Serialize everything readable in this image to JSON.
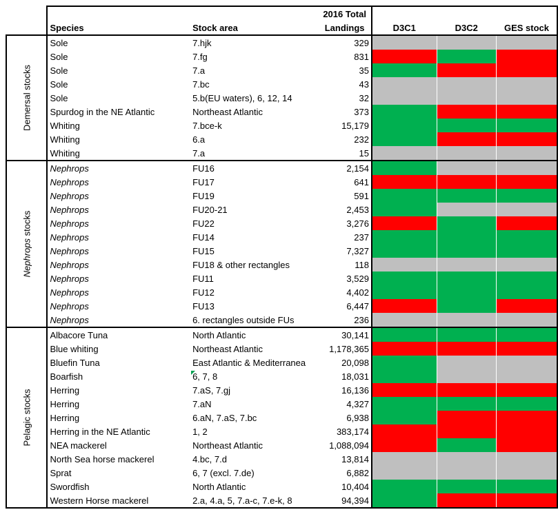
{
  "header": {
    "landings_line1": "2016 Total",
    "landings_line2": "Landings",
    "species": "Species",
    "stock_area": "Stock area",
    "d3c1": "D3C1",
    "d3c2": "D3C2",
    "ges": "GES stock"
  },
  "colors": {
    "red": "#ff0000",
    "green": "#00b050",
    "grey": "#bfbfbf"
  },
  "groups": [
    {
      "label": "Demersal stocks",
      "rows": [
        {
          "species": "Sole",
          "area": "7.hjk",
          "landings": "329",
          "d3c1": "grey",
          "d3c2": "grey",
          "ges": "grey"
        },
        {
          "species": "Sole",
          "area": "7.fg",
          "landings": "831",
          "d3c1": "red",
          "d3c2": "green",
          "ges": "red"
        },
        {
          "species": "Sole",
          "area": "7.a",
          "landings": "35",
          "d3c1": "green",
          "d3c2": "red",
          "ges": "red"
        },
        {
          "species": "Sole",
          "area": "7.bc",
          "landings": "43",
          "d3c1": "grey",
          "d3c2": "grey",
          "ges": "grey"
        },
        {
          "species": "Sole",
          "area": "5.b(EU waters), 6, 12, 14",
          "landings": "32",
          "d3c1": "grey",
          "d3c2": "grey",
          "ges": "grey"
        },
        {
          "species": "Spurdog in the NE Atlantic",
          "area": "Northeast Atlantic",
          "landings": "373",
          "d3c1": "green",
          "d3c2": "red",
          "ges": "red"
        },
        {
          "species": "Whiting",
          "area": "7.bce-k",
          "landings": "15,179",
          "d3c1": "green",
          "d3c2": "green",
          "ges": "green"
        },
        {
          "species": "Whiting",
          "area": "6.a",
          "landings": "232",
          "d3c1": "green",
          "d3c2": "red",
          "ges": "red"
        },
        {
          "species": "Whiting",
          "area": "7.a",
          "landings": "15",
          "d3c1": "grey",
          "d3c2": "grey",
          "ges": "grey"
        }
      ]
    },
    {
      "label_italic": "Nephrops",
      "label_rest": " stocks",
      "rows": [
        {
          "species": "Nephrops",
          "italic": true,
          "area": "FU16",
          "landings": "2,154",
          "d3c1": "green",
          "d3c2": "grey",
          "ges": "grey"
        },
        {
          "species": "Nephrops",
          "italic": true,
          "area": "FU17",
          "landings": "641",
          "d3c1": "red",
          "d3c2": "red",
          "ges": "red"
        },
        {
          "species": "Nephrops",
          "italic": true,
          "area": "FU19",
          "landings": "591",
          "d3c1": "green",
          "d3c2": "green",
          "ges": "green"
        },
        {
          "species": "Nephrops",
          "italic": true,
          "area": "FU20-21",
          "landings": "2,453",
          "d3c1": "green",
          "d3c2": "grey",
          "ges": "grey"
        },
        {
          "species": "Nephrops",
          "italic": true,
          "area": "FU22",
          "landings": "3,276",
          "d3c1": "red",
          "d3c2": "green",
          "ges": "red"
        },
        {
          "species": "Nephrops",
          "italic": true,
          "area": "FU14",
          "landings": "237",
          "d3c1": "green",
          "d3c2": "green",
          "ges": "green"
        },
        {
          "species": "Nephrops",
          "italic": true,
          "area": "FU15",
          "landings": "7,327",
          "d3c1": "green",
          "d3c2": "green",
          "ges": "green"
        },
        {
          "species": "Nephrops",
          "italic": true,
          "area": "FU18 & other rectangles",
          "landings": "118",
          "d3c1": "grey",
          "d3c2": "grey",
          "ges": "grey"
        },
        {
          "species": "Nephrops",
          "italic": true,
          "area": "FU11",
          "landings": "3,529",
          "d3c1": "green",
          "d3c2": "green",
          "ges": "green"
        },
        {
          "species": "Nephrops",
          "italic": true,
          "area": "FU12",
          "landings": "4,402",
          "d3c1": "green",
          "d3c2": "green",
          "ges": "green"
        },
        {
          "species": "Nephrops",
          "italic": true,
          "area": "FU13",
          "landings": "6,447",
          "d3c1": "red",
          "d3c2": "green",
          "ges": "red"
        },
        {
          "species": "Nephrops",
          "italic": true,
          "area": "6. rectangles outside FUs",
          "landings": "236",
          "d3c1": "grey",
          "d3c2": "grey",
          "ges": "grey"
        }
      ]
    },
    {
      "label": "Pelagic stocks",
      "rows": [
        {
          "species": "Albacore Tuna",
          "area": "North Atlantic",
          "landings": "30,141",
          "d3c1": "green",
          "d3c2": "green",
          "ges": "green"
        },
        {
          "species": "Blue whiting",
          "area": "Northeast Atlantic",
          "landings": "1,178,365",
          "d3c1": "red",
          "d3c2": "red",
          "ges": "red"
        },
        {
          "species": "Bluefin Tuna",
          "area": "East Atlantic & Mediterranea",
          "landings": "20,098",
          "d3c1": "green",
          "d3c2": "grey",
          "ges": "grey"
        },
        {
          "species": "Boarfish",
          "area": "6, 7, 8",
          "mark": true,
          "landings": "18,031",
          "d3c1": "green",
          "d3c2": "grey",
          "ges": "grey"
        },
        {
          "species": "Herring",
          "area": "7.aS, 7.gj",
          "landings": "16,136",
          "d3c1": "red",
          "d3c2": "red",
          "ges": "red"
        },
        {
          "species": "Herring",
          "area": "7.aN",
          "landings": "4,327",
          "d3c1": "green",
          "d3c2": "green",
          "ges": "green"
        },
        {
          "species": "Herring",
          "area": "6.aN, 7.aS, 7.bc",
          "landings": "6,938",
          "d3c1": "green",
          "d3c2": "red",
          "ges": "red"
        },
        {
          "species": "Herring in the NE Atlantic",
          "area": "1, 2",
          "landings": "383,174",
          "d3c1": "red",
          "d3c2": "red",
          "ges": "red"
        },
        {
          "species": "NEA mackerel",
          "area": "Northeast Atlantic",
          "landings": "1,088,094",
          "d3c1": "red",
          "d3c2": "green",
          "ges": "red"
        },
        {
          "species": "North Sea horse mackerel",
          "area": "4.bc, 7.d",
          "landings": "13,814",
          "d3c1": "grey",
          "d3c2": "grey",
          "ges": "grey"
        },
        {
          "species": "Sprat",
          "area": "6, 7 (excl. 7.de)",
          "landings": "6,882",
          "d3c1": "grey",
          "d3c2": "grey",
          "ges": "grey"
        },
        {
          "species": "Swordfish",
          "area": "North Atlantic",
          "landings": "10,404",
          "d3c1": "green",
          "d3c2": "green",
          "ges": "green"
        },
        {
          "species": "Western Horse mackerel",
          "area": "2.a, 4.a, 5, 7.a-c, 7.e-k, 8",
          "landings": "94,394",
          "d3c1": "green",
          "d3c2": "red",
          "ges": "red"
        }
      ]
    }
  ]
}
